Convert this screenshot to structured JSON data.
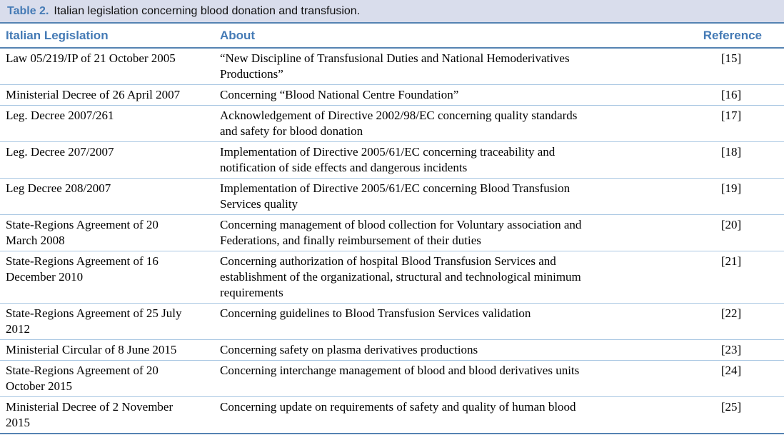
{
  "title": {
    "label": "Table 2.",
    "text": "Italian legislation concerning blood donation and transfusion."
  },
  "columns": [
    {
      "key": "legislation",
      "label": "Italian Legislation"
    },
    {
      "key": "about",
      "label": "About"
    },
    {
      "key": "reference",
      "label": "Reference"
    }
  ],
  "rows": [
    {
      "legislation": "Law 05/219/IP of 21 October 2005",
      "about": "“New Discipline of Transfusional Duties and National Hemoderivatives\nProductions”",
      "reference": "[15]"
    },
    {
      "legislation": "Ministerial Decree of 26 April 2007",
      "about": "Concerning “Blood National Centre Foundation”",
      "reference": "[16]"
    },
    {
      "legislation": "Leg. Decree 2007/261",
      "about": "Acknowledgement of Directive 2002/98/EC concerning quality standards\nand safety for blood donation",
      "reference": "[17]"
    },
    {
      "legislation": "Leg. Decree 207/2007",
      "about": "Implementation of Directive 2005/61/EC concerning traceability and\nnotification of side effects and dangerous incidents",
      "reference": "[18]"
    },
    {
      "legislation": "Leg Decree 208/2007",
      "about": "Implementation of Directive 2005/61/EC concerning Blood Transfusion\nServices quality",
      "reference": "[19]"
    },
    {
      "legislation": "State-Regions Agreement of 20\nMarch 2008",
      "about": "Concerning management of blood collection for Voluntary association and\nFederations, and finally reimbursement of their duties",
      "reference": "[20]"
    },
    {
      "legislation": "State-Regions Agreement of 16\nDecember 2010",
      "about": "Concerning authorization of hospital Blood Transfusion Services and\nestablishment of the organizational, structural and technological minimum\nrequirements",
      "reference": "[21]"
    },
    {
      "legislation": "State-Regions Agreement of 25 July\n2012",
      "about": "Concerning guidelines to Blood Transfusion Services validation",
      "reference": "[22]"
    },
    {
      "legislation": "Ministerial Circular of 8 June 2015",
      "about": "Concerning safety on plasma derivatives productions",
      "reference": "[23]"
    },
    {
      "legislation": "State-Regions Agreement of 20\nOctober 2015",
      "about": "Concerning interchange management of blood and blood derivatives units",
      "reference": "[24]"
    },
    {
      "legislation": "Ministerial Decree of 2 November\n2015",
      "about": "Concerning update on requirements of safety and quality of human blood",
      "reference": "[25]"
    }
  ],
  "colors": {
    "accent": "#447ab5",
    "titlebar_bg": "#d9ddec",
    "major_rule": "#5583b2",
    "row_rule": "#a9c7e2",
    "body_text": "#000000",
    "title_text": "#111111"
  }
}
